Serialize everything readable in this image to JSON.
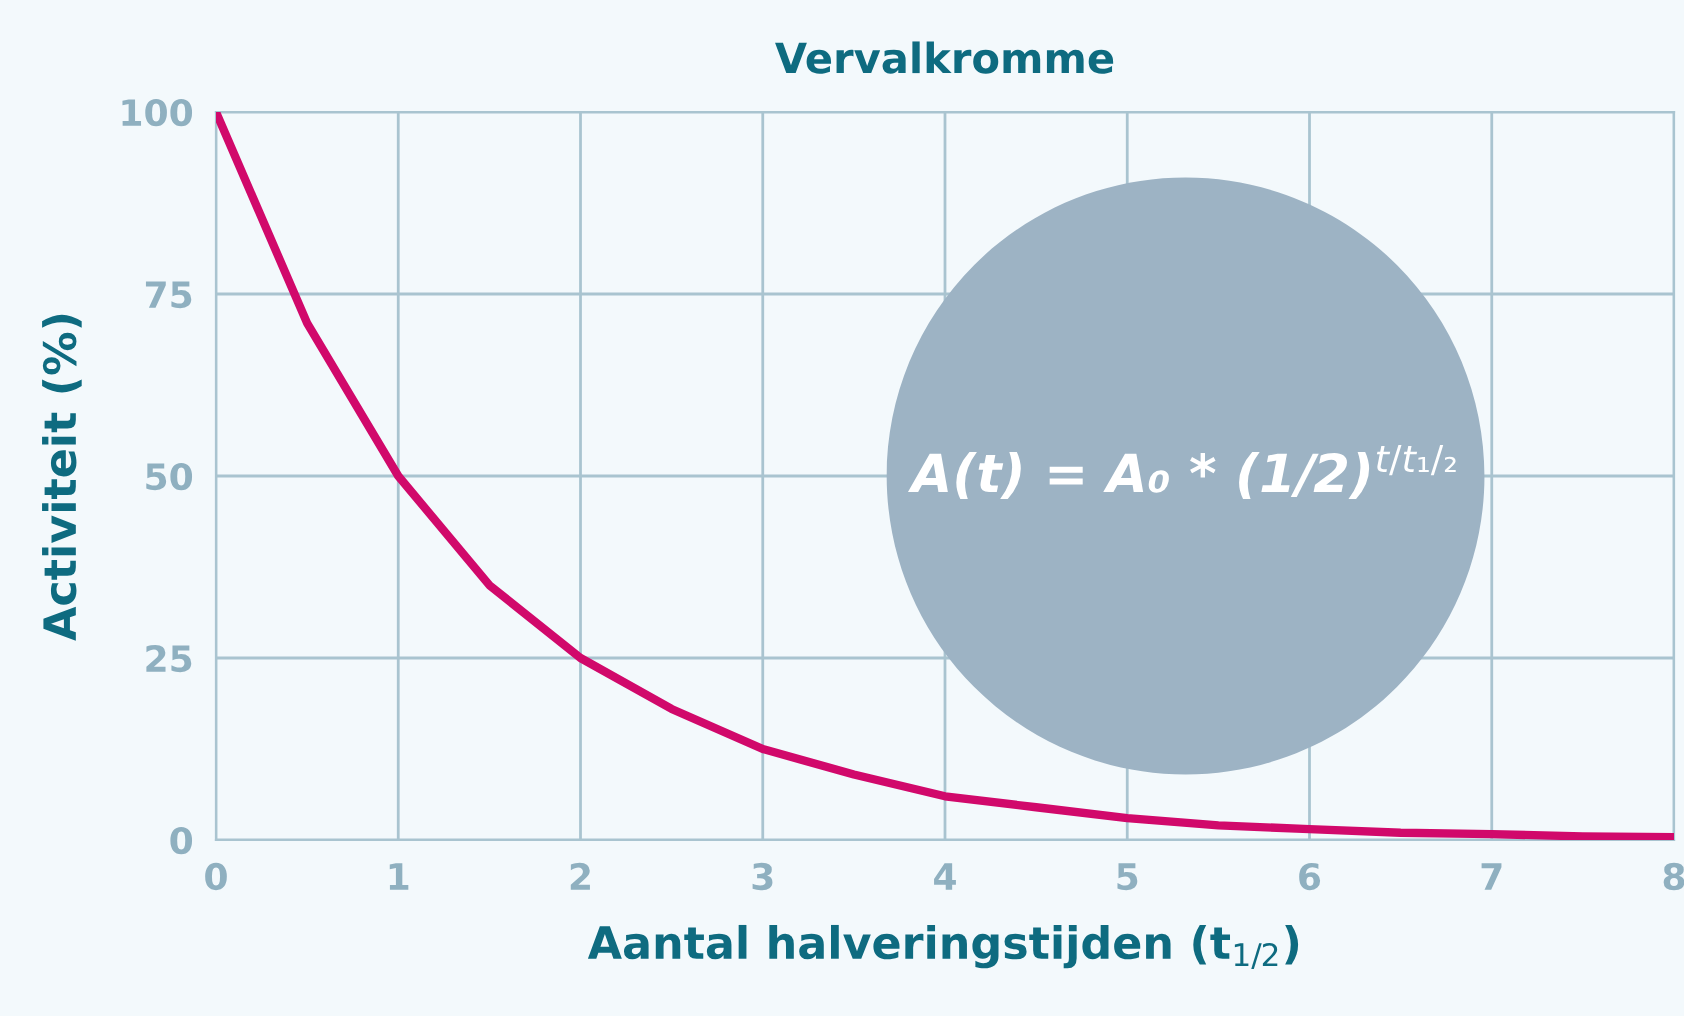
{
  "chart_data": {
    "type": "line",
    "title": "Vervalkromme",
    "xlabel": "Aantal halveringstijden (t$_{1/2}$)",
    "ylabel": "Activiteit (%)",
    "x": [
      0,
      0.5,
      1,
      1.5,
      2,
      2.5,
      3,
      3.5,
      4,
      4.5,
      5,
      5.5,
      6,
      6.5,
      7,
      7.5,
      8
    ],
    "series": [
      {
        "color": "#d1096b",
        "values": [
          100,
          71,
          50,
          35,
          25,
          18,
          12.5,
          9,
          6,
          4.5,
          3,
          2,
          1.5,
          1,
          0.8,
          0.5,
          0.4
        ]
      }
    ],
    "xlim": [
      0,
      8
    ],
    "ylim": [
      0,
      100
    ],
    "xticks": [
      0,
      1,
      2,
      3,
      4,
      5,
      6,
      7,
      8
    ],
    "yticks": [
      0,
      25,
      50,
      75,
      100
    ],
    "grid": true,
    "line_style": "solid",
    "marker": "none",
    "annotations": [
      "A(t) = A₀ * (1/2)$^{t/t₁/₂}$"
    ]
  }
}
